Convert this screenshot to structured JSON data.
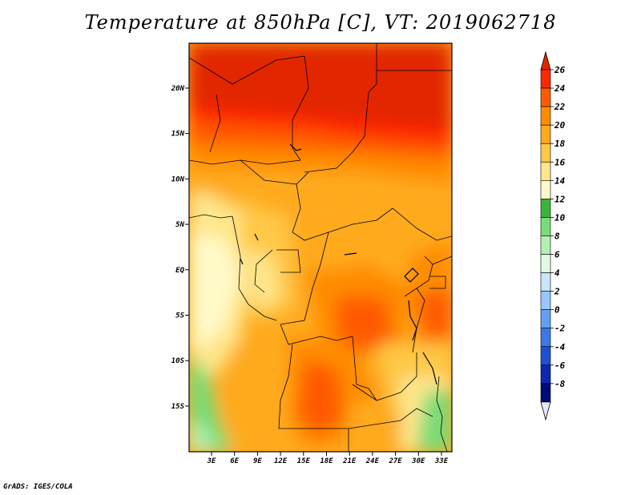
{
  "title": "Temperature at 850hPa [C], VT: 2019062718",
  "footer": "GrADS: IGES/COLA",
  "map": {
    "lat_ticks": [
      "20N",
      "15N",
      "10N",
      "5N",
      "EQ",
      "5S",
      "10S",
      "15S"
    ],
    "lon_ticks": [
      "3E",
      "6E",
      "9E",
      "12E",
      "15E",
      "18E",
      "21E",
      "24E",
      "27E",
      "30E",
      "33E"
    ]
  },
  "colorbar": {
    "labels": [
      "26",
      "24",
      "22",
      "20",
      "18",
      "16",
      "14",
      "12",
      "10",
      "8",
      "6",
      "4",
      "2",
      "0",
      "-2",
      "-4",
      "-6",
      "-8"
    ],
    "colors": [
      "#ff2800",
      "#ff5a00",
      "#ff8c00",
      "#ffaa1e",
      "#ffc846",
      "#ffe68c",
      "#fffac8",
      "#3ab43a",
      "#78dc78",
      "#b4f0b4",
      "#e1fae6",
      "#c8e6ff",
      "#96c8ff",
      "#64a0f0",
      "#3c78e6",
      "#1e50d2",
      "#0a28b4",
      "#000a78"
    ],
    "over_color": "#e12800",
    "under_color": "#e6e6ff"
  }
}
